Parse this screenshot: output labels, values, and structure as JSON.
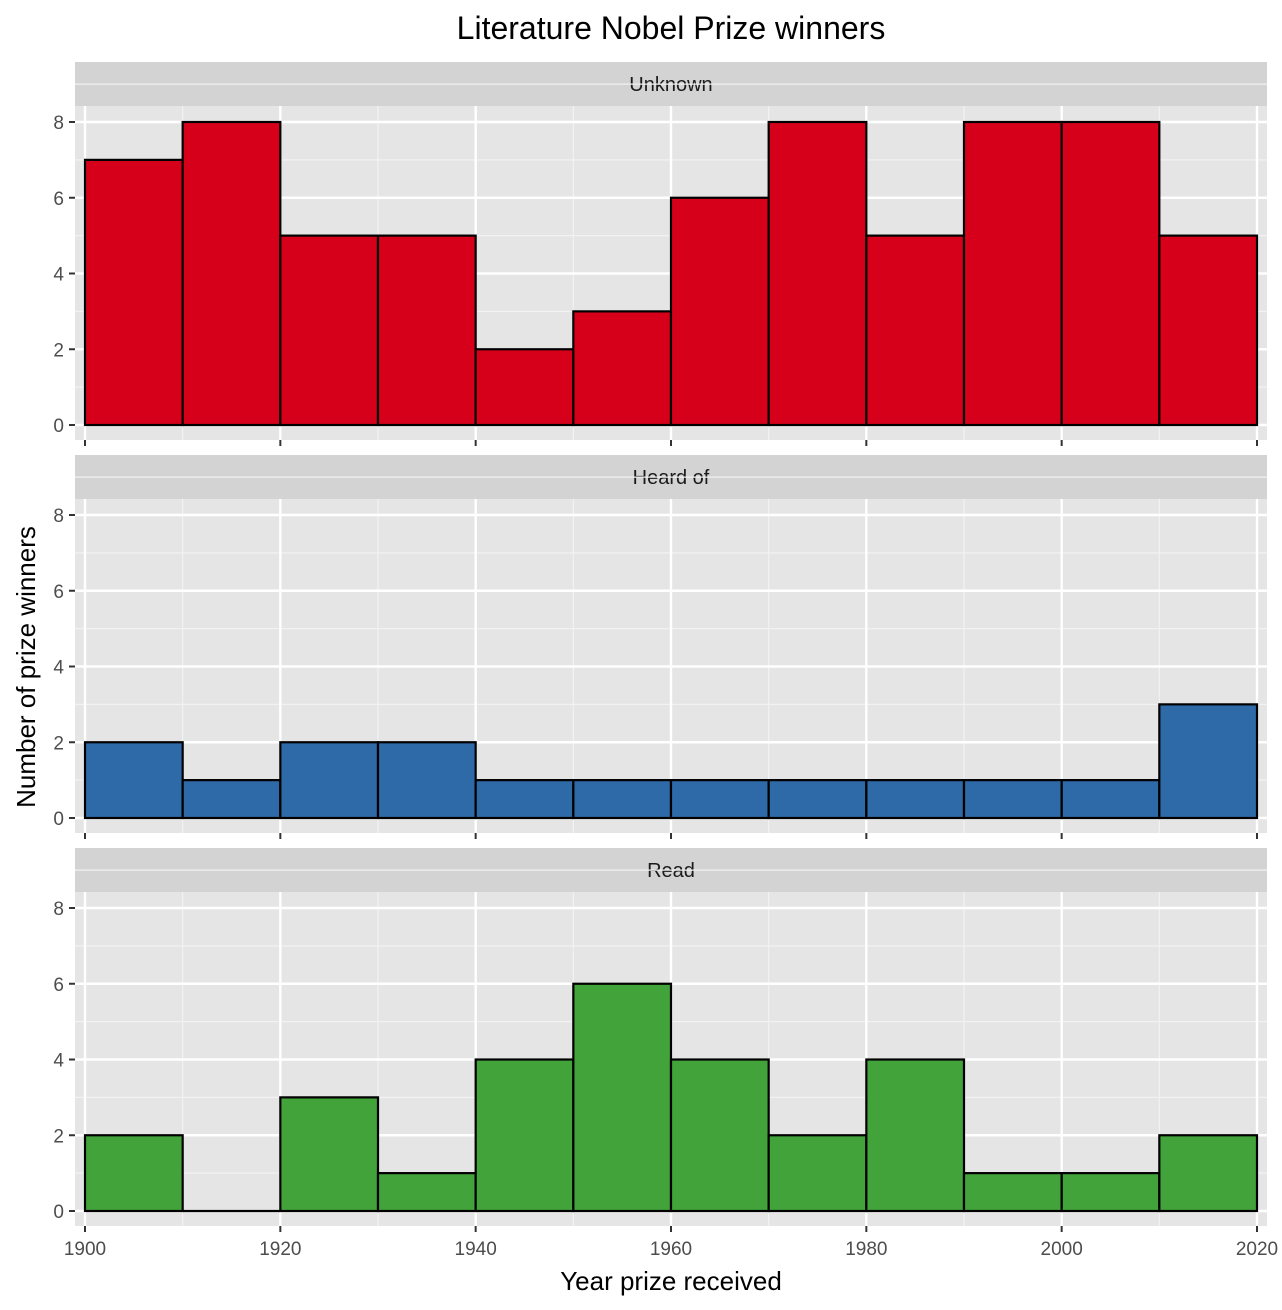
{
  "chart_data": {
    "type": "bar",
    "title": "Literature Nobel Prize winners",
    "xlabel": "Year prize received",
    "ylabel": "Number of prize winners",
    "bins": [
      1900,
      1910,
      1920,
      1930,
      1940,
      1950,
      1960,
      1970,
      1980,
      1990,
      2000,
      2010,
      2020
    ],
    "xlim": [
      1900,
      2020
    ],
    "ylim": [
      0,
      8
    ],
    "x_ticks": [
      "1900",
      "1920",
      "1940",
      "1960",
      "1980",
      "2000",
      "2020"
    ],
    "y_ticks": [
      "0",
      "2",
      "4",
      "6",
      "8"
    ],
    "grid": true,
    "panel_background": "#e5e5e5",
    "strip_background": "#d3d3d3",
    "bar_outline": "#000000",
    "facets": [
      {
        "name": "Unknown",
        "color": "#d7001a",
        "values": [
          7,
          8,
          5,
          5,
          2,
          3,
          6,
          8,
          5,
          8,
          8,
          5
        ]
      },
      {
        "name": "Heard of",
        "color": "#2e6aa8",
        "values": [
          2,
          1,
          2,
          2,
          1,
          1,
          1,
          1,
          1,
          1,
          1,
          3
        ]
      },
      {
        "name": "Read",
        "color": "#42a33a",
        "values": [
          2,
          0,
          3,
          1,
          4,
          6,
          4,
          2,
          4,
          1,
          1,
          2
        ]
      }
    ]
  }
}
